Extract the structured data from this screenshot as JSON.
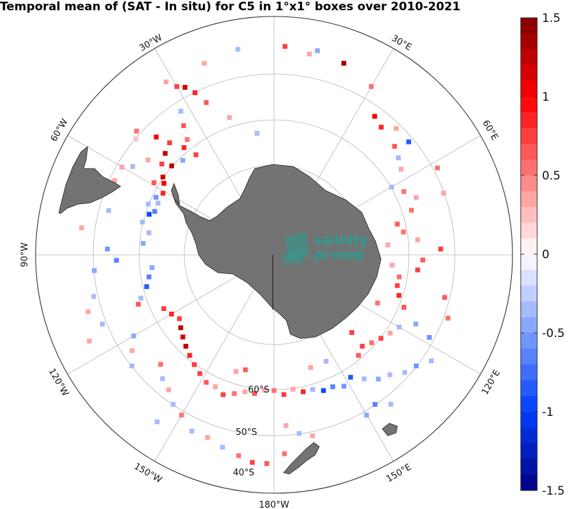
{
  "title": "Temporal mean of (SAT - In situ) for C5 in 1°x1° boxes over 2010-2021",
  "watermark": {
    "line1": "salinity",
    "line2": "pi-mep"
  },
  "colors": {
    "land": "#737373",
    "grid": "#b5b5b5",
    "frame": "#333333"
  },
  "chart_data": {
    "type": "heatmap",
    "projection": "south polar stereographic",
    "title": "Temporal mean of (SAT - In situ) for C5 in 1°x1° boxes over 2010-2021",
    "grid": true,
    "lat_circles": [
      60,
      50,
      40
    ],
    "lat_labels": [
      "60°S",
      "50°S",
      "40°S"
    ],
    "lon_labels": [
      "30°W",
      "30°E",
      "60°W",
      "60°E",
      "90°W",
      "120°W",
      "120°E",
      "150°W",
      "150°E",
      "180°W"
    ],
    "colorbar": {
      "min": -1.5,
      "max": 1.5,
      "levels": 30,
      "position": "right",
      "ticks": [
        1.5,
        1,
        0.5,
        0,
        -0.5,
        -1,
        -1.5
      ],
      "tick_labels": [
        "1.5",
        "1",
        "0.5",
        "0",
        "-0.5",
        "-1",
        "-1.5"
      ],
      "low_color": "#00007f",
      "mid_color": "#ffffff",
      "high_color": "#7f0000"
    },
    "boxes": [
      {
        "lon": -32,
        "lat": -42,
        "v": 0.3
      },
      {
        "lon": -30,
        "lat": -44,
        "v": 0.8
      },
      {
        "lon": -28,
        "lat": -45,
        "v": 1.1
      },
      {
        "lon": -26,
        "lat": -47,
        "v": 0.9
      },
      {
        "lon": -33,
        "lat": -49,
        "v": -0.3
      },
      {
        "lon": -35,
        "lat": -52,
        "v": 0.6
      },
      {
        "lon": -37,
        "lat": -55,
        "v": 0.5
      },
      {
        "lon": -40,
        "lat": -56,
        "v": 0.9
      },
      {
        "lon": -43,
        "lat": -53,
        "v": 0.7
      },
      {
        "lon": -45,
        "lat": -50,
        "v": 1.0
      },
      {
        "lon": -47,
        "lat": -54,
        "v": 1.2
      },
      {
        "lon": -49,
        "lat": -57,
        "v": 1.3
      },
      {
        "lon": -51,
        "lat": -55,
        "v": 0.8
      },
      {
        "lon": -53,
        "lat": -52,
        "v": 0.4
      },
      {
        "lon": -55,
        "lat": -57,
        "v": 1.1
      },
      {
        "lon": -57,
        "lat": -58,
        "v": 1.0
      },
      {
        "lon": -59,
        "lat": -56,
        "v": 0.6
      },
      {
        "lon": -61,
        "lat": -59,
        "v": 0.9
      },
      {
        "lon": -58,
        "lat": -50,
        "v": -0.4
      },
      {
        "lon": -60,
        "lat": -48,
        "v": 0.3
      },
      {
        "lon": -48,
        "lat": -46,
        "v": 0.5
      },
      {
        "lon": -50,
        "lat": -47,
        "v": 0.2
      },
      {
        "lon": -44,
        "lat": -58,
        "v": -0.5
      },
      {
        "lon": -38,
        "lat": -59,
        "v": 0.7
      },
      {
        "lon": -64,
        "lat": -58,
        "v": -0.6
      },
      {
        "lon": -66,
        "lat": -59,
        "v": -0.4
      },
      {
        "lon": -68,
        "lat": -57,
        "v": -0.3
      },
      {
        "lon": -70,
        "lat": -59,
        "v": -0.7
      },
      {
        "lon": -72,
        "lat": -58,
        "v": -0.9
      },
      {
        "lon": -76,
        "lat": -57,
        "v": -0.4
      },
      {
        "lon": -80,
        "lat": -59,
        "v": -0.3
      },
      {
        "lon": -85,
        "lat": -58,
        "v": -0.5
      },
      {
        "lon": -88,
        "lat": -50,
        "v": -0.6
      },
      {
        "lon": -92,
        "lat": -52,
        "v": -0.7
      },
      {
        "lon": -96,
        "lat": -60,
        "v": -0.5
      },
      {
        "lon": -100,
        "lat": -59,
        "v": -0.7
      },
      {
        "lon": -104,
        "lat": -58,
        "v": -0.8
      },
      {
        "lon": -108,
        "lat": -56,
        "v": -0.4
      },
      {
        "lon": -110,
        "lat": -55,
        "v": 0.6
      },
      {
        "lon": -103,
        "lat": -46,
        "v": -0.3
      },
      {
        "lon": -107,
        "lat": -44,
        "v": 0.4
      },
      {
        "lon": -112,
        "lat": -46,
        "v": -0.4
      },
      {
        "lon": -116,
        "lat": -60,
        "v": 0.7
      },
      {
        "lon": -120,
        "lat": -61,
        "v": 0.9
      },
      {
        "lon": -124,
        "lat": -62,
        "v": 0.8
      },
      {
        "lon": -128,
        "lat": -61,
        "v": 1.2
      },
      {
        "lon": -132,
        "lat": -60,
        "v": 1.1
      },
      {
        "lon": -136,
        "lat": -59,
        "v": 1.3
      },
      {
        "lon": -140,
        "lat": -58,
        "v": 0.9
      },
      {
        "lon": -144,
        "lat": -57,
        "v": 0.8
      },
      {
        "lon": -148,
        "lat": -56,
        "v": 0.7
      },
      {
        "lon": -152,
        "lat": -55,
        "v": 0.6
      },
      {
        "lon": -156,
        "lat": -55,
        "v": 0.4
      },
      {
        "lon": -160,
        "lat": -54,
        "v": 0.7
      },
      {
        "lon": -164,
        "lat": -55,
        "v": 0.5
      },
      {
        "lon": -168,
        "lat": -56,
        "v": 0.3
      },
      {
        "lon": -172,
        "lat": -56,
        "v": 0.6
      },
      {
        "lon": -176,
        "lat": -57,
        "v": 0.4
      },
      {
        "lon": -134,
        "lat": -52,
        "v": 0.5
      },
      {
        "lon": -138,
        "lat": -50,
        "v": -0.4
      },
      {
        "lon": -142,
        "lat": -49,
        "v": 0.3
      },
      {
        "lon": -146,
        "lat": -47,
        "v": -0.3
      },
      {
        "lon": -150,
        "lat": -46,
        "v": 0.5
      },
      {
        "lon": -155,
        "lat": -44,
        "v": -0.4
      },
      {
        "lon": -160,
        "lat": -44,
        "v": 0.3
      },
      {
        "lon": -165,
        "lat": -43,
        "v": -0.3
      },
      {
        "lon": -170,
        "lat": -42,
        "v": 0.5
      },
      {
        "lon": -174,
        "lat": -41,
        "v": 0.8
      },
      {
        "lon": -178,
        "lat": -41,
        "v": 0.6
      },
      {
        "lon": -120,
        "lat": -51,
        "v": -0.5
      },
      {
        "lon": -124,
        "lat": -49,
        "v": 0.4
      },
      {
        "lon": -128,
        "lat": -47,
        "v": -0.3
      },
      {
        "lon": 180,
        "lat": -57,
        "v": 0.5
      },
      {
        "lon": 176,
        "lat": -56,
        "v": 0.7
      },
      {
        "lon": 172,
        "lat": -57,
        "v": 0.4
      },
      {
        "lon": 168,
        "lat": -56,
        "v": 0.9
      },
      {
        "lon": 164,
        "lat": -56,
        "v": -0.3
      },
      {
        "lon": 160,
        "lat": -55,
        "v": -0.9
      },
      {
        "lon": 156,
        "lat": -55,
        "v": -0.7
      },
      {
        "lon": 152,
        "lat": -54,
        "v": -0.6
      },
      {
        "lon": 148,
        "lat": -55,
        "v": -0.8
      },
      {
        "lon": 144,
        "lat": -53,
        "v": -0.4
      },
      {
        "lon": 140,
        "lat": -51,
        "v": -0.5
      },
      {
        "lon": 136,
        "lat": -50,
        "v": -0.3
      },
      {
        "lon": 132,
        "lat": -48,
        "v": -0.4
      },
      {
        "lon": 128,
        "lat": -47,
        "v": -0.6
      },
      {
        "lon": 176,
        "lat": -49,
        "v": 0.4
      },
      {
        "lon": 172,
        "lat": -47,
        "v": -0.3
      },
      {
        "lon": 168,
        "lat": -46,
        "v": 0.3
      },
      {
        "lon": 150,
        "lat": -46,
        "v": -0.5
      },
      {
        "lon": 146,
        "lat": -47,
        "v": -0.7
      },
      {
        "lon": 142,
        "lat": -45,
        "v": -0.4
      },
      {
        "lon": 177,
        "lat": -43,
        "v": 0.5
      },
      {
        "lon": 140,
        "lat": -58,
        "v": 0.6
      },
      {
        "lon": 136,
        "lat": -59,
        "v": 0.8
      },
      {
        "lon": 132,
        "lat": -58,
        "v": 0.5
      },
      {
        "lon": 128,
        "lat": -57,
        "v": 0.7
      },
      {
        "lon": 124,
        "lat": -56,
        "v": 0.4
      },
      {
        "lon": 120,
        "lat": -55,
        "v": -0.3
      },
      {
        "lon": 116,
        "lat": -52,
        "v": -0.5
      },
      {
        "lon": 112,
        "lat": -56,
        "v": 0.6
      },
      {
        "lon": 108,
        "lat": -58,
        "v": 0.9
      },
      {
        "lon": 104,
        "lat": -59,
        "v": 0.7
      },
      {
        "lon": 100,
        "lat": -59,
        "v": 0.5
      },
      {
        "lon": 96,
        "lat": -55,
        "v": 0.8
      },
      {
        "lon": 92,
        "lat": -54,
        "v": 0.6
      },
      {
        "lon": 88,
        "lat": -50,
        "v": 0.7
      },
      {
        "lon": 84,
        "lat": -55,
        "v": 0.4
      },
      {
        "lon": 80,
        "lat": -58,
        "v": 0.5
      },
      {
        "lon": 76,
        "lat": -59,
        "v": 0.6
      },
      {
        "lon": 72,
        "lat": -55,
        "v": 0.5
      },
      {
        "lon": 68,
        "lat": -53,
        "v": 0.4
      },
      {
        "lon": 64,
        "lat": -55,
        "v": 0.5
      },
      {
        "lon": 60,
        "lat": -57,
        "v": -0.3
      },
      {
        "lon": 56,
        "lat": -53,
        "v": 0.3
      },
      {
        "lon": 52,
        "lat": -52,
        "v": -0.3
      },
      {
        "lon": 48,
        "lat": -51,
        "v": 0.6
      },
      {
        "lon": 44,
        "lat": -48,
        "v": 0.4
      },
      {
        "lon": 40,
        "lat": -50,
        "v": 0.9
      },
      {
        "lon": 36,
        "lat": -49,
        "v": 1.0
      },
      {
        "lon": 50,
        "lat": -48,
        "v": -0.8
      },
      {
        "lon": 30,
        "lat": -44,
        "v": 0.5
      },
      {
        "lon": 20,
        "lat": -42,
        "v": 1.4
      },
      {
        "lon": 12,
        "lat": -41,
        "v": -0.5
      },
      {
        "lon": 10,
        "lat": -42,
        "v": 0.4
      },
      {
        "lon": 3,
        "lat": -41,
        "v": 0.7
      },
      {
        "lon": 62,
        "lat": -46,
        "v": 0.5
      },
      {
        "lon": 70,
        "lat": -47,
        "v": 0.4
      },
      {
        "lon": 110,
        "lat": -46,
        "v": 0.5
      },
      {
        "lon": 104,
        "lat": -48,
        "v": 0.6
      },
      {
        "lon": 118,
        "lat": -48,
        "v": -0.6
      },
      {
        "lon": 124,
        "lat": -45,
        "v": -0.4
      },
      {
        "lon": -10,
        "lat": -41,
        "v": -0.3
      },
      {
        "lon": -20,
        "lat": -42,
        "v": 0.4
      },
      {
        "lon": -24,
        "lat": -50,
        "v": 0.6
      },
      {
        "lon": -18,
        "lat": -55,
        "v": 0.3
      },
      {
        "lon": -8,
        "lat": -60,
        "v": -0.3
      },
      {
        "lon": -65,
        "lat": -48,
        "v": 0.4
      },
      {
        "lon": -75,
        "lat": -49,
        "v": -0.3
      },
      {
        "lon": -82,
        "lat": -44,
        "v": 0.3
      },
      {
        "lon": -95,
        "lat": -47,
        "v": -0.5
      },
      {
        "lon": -115,
        "lat": -42,
        "v": 0.3
      },
      {
        "lon": -145,
        "lat": -42,
        "v": -0.3
      },
      {
        "lon": -162,
        "lat": -60,
        "v": 0.4
      },
      {
        "lon": -166,
        "lat": -61,
        "v": 0.6
      },
      {
        "lon": 162,
        "lat": -61,
        "v": 0.4
      },
      {
        "lon": 154,
        "lat": -61,
        "v": -0.4
      },
      {
        "lon": 135,
        "lat": -63,
        "v": 0.7
      },
      {
        "lon": 115,
        "lat": -62,
        "v": 0.5
      },
      {
        "lon": 95,
        "lat": -61,
        "v": 0.4
      },
      {
        "lon": 85,
        "lat": -62,
        "v": 0.3
      }
    ]
  }
}
